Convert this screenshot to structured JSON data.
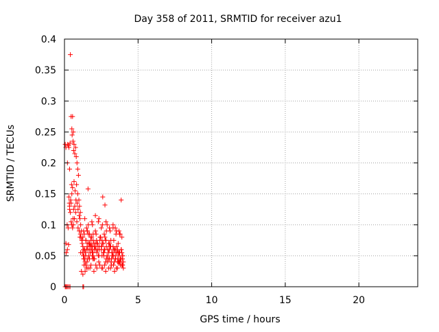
{
  "chart_data": {
    "type": "scatter",
    "title": "Day 358 of 2011, SRMTID for receiver azu1",
    "xlabel": "GPS time / hours",
    "ylabel": "SRMTID / TECUs",
    "xlim": [
      0,
      24
    ],
    "ylim": [
      0,
      0.4
    ],
    "x_ticks": [
      0,
      5,
      10,
      15,
      20
    ],
    "x_tick_labels": [
      "0",
      "5",
      "10",
      "15",
      "20"
    ],
    "y_ticks": [
      0,
      0.05,
      0.1,
      0.15,
      0.2,
      0.25,
      0.3,
      0.35,
      0.4
    ],
    "y_tick_labels": [
      "0",
      "0.05",
      "0.1",
      "0.15",
      "0.2",
      "0.25",
      "0.3",
      "0.35",
      "0.4"
    ],
    "grid": true,
    "marker": "+",
    "series": [
      {
        "name": "azu1",
        "color": "#ff0000",
        "x": [
          0.05,
          0.1,
          0.15,
          0.22,
          0.3,
          0.38,
          0.1,
          0.2,
          0.12,
          0.28,
          0.18,
          0.25,
          0.35,
          0.33,
          0.42,
          0.22,
          0.3,
          0.27,
          0.38,
          0.45,
          0.4,
          0.55,
          0.5,
          0.6,
          0.52,
          0.58,
          0.65,
          0.62,
          0.7,
          0.75,
          0.8,
          0.85,
          0.9,
          0.95,
          0.48,
          0.55,
          0.65,
          0.72,
          0.82,
          0.9,
          0.98,
          1.02,
          1.08,
          0.45,
          0.5,
          0.58,
          0.62,
          0.7,
          0.78,
          0.86,
          0.92,
          1.0,
          1.05,
          1.1,
          1.15,
          0.3,
          0.35,
          0.4,
          0.45,
          0.5,
          0.55,
          0.6,
          0.68,
          0.76,
          0.84,
          0.92,
          1.0,
          1.08,
          1.12,
          1.18,
          1.2,
          1.25,
          1.28,
          1.32,
          1.36,
          1.4,
          1.45,
          1.5,
          1.55,
          1.6,
          1.65,
          1.7,
          1.75,
          1.8,
          1.85,
          1.9,
          1.95,
          2.0,
          1.22,
          1.3,
          1.38,
          1.46,
          1.54,
          1.62,
          1.7,
          1.78,
          1.86,
          1.94,
          2.02,
          2.1,
          2.18,
          2.26,
          2.34,
          2.42,
          2.5,
          2.58,
          2.66,
          2.74,
          2.82,
          2.9,
          2.98,
          3.06,
          3.14,
          3.22,
          3.3,
          3.38,
          3.46,
          3.54,
          3.62,
          3.7,
          3.78,
          3.86,
          3.94,
          4.0,
          1.25,
          1.35,
          1.45,
          1.55,
          1.65,
          1.75,
          1.85,
          1.95,
          2.05,
          2.15,
          2.25,
          2.35,
          2.45,
          2.55,
          2.65,
          2.75,
          2.85,
          2.95,
          3.05,
          3.15,
          3.25,
          3.35,
          3.45,
          3.55,
          3.65,
          3.75,
          3.85,
          3.95,
          1.28,
          1.42,
          1.58,
          1.72,
          1.88,
          2.04,
          2.2,
          2.36,
          2.52,
          2.68,
          2.84,
          3.0,
          3.16,
          3.32,
          3.48,
          3.64,
          3.8,
          3.96,
          1.3,
          1.5,
          1.7,
          1.9,
          2.1,
          2.3,
          2.5,
          2.7,
          2.9,
          3.1,
          3.3,
          3.5,
          3.7,
          3.9,
          1.33,
          1.53,
          1.73,
          1.93,
          2.13,
          2.33,
          2.53,
          2.73,
          2.93,
          3.13,
          3.33,
          3.53,
          3.73,
          3.93,
          1.38,
          1.62,
          1.86,
          2.1,
          2.34,
          2.58,
          2.82,
          3.06,
          3.3,
          3.54,
          3.78,
          1.4,
          1.6,
          1.8,
          2.0,
          2.2,
          2.4,
          2.6,
          2.8,
          3.0,
          3.2,
          3.4,
          3.6,
          3.8,
          4.0,
          1.5,
          1.8,
          2.1,
          2.4,
          2.7,
          3.0,
          3.3,
          3.6,
          3.9,
          1.45,
          1.75,
          2.05,
          2.35,
          2.65,
          2.95,
          3.25,
          3.55,
          3.85,
          1.9,
          2.2,
          2.5,
          2.8,
          3.1,
          3.4,
          3.7,
          1.15,
          1.25,
          1.6,
          2.6,
          2.75,
          3.45,
          3.85,
          3.95,
          1.55,
          1.95,
          2.45,
          2.85,
          3.35,
          3.75,
          0.05,
          0.1,
          0.2,
          0.35,
          1.25,
          1.3,
          2.0,
          2.3,
          2.8,
          3.2,
          3.6,
          3.9,
          1.1,
          1.35,
          2.55,
          3.05,
          3.65,
          3.9,
          1.05,
          1.2,
          1.65,
          1.85,
          2.15,
          2.65,
          2.9,
          3.45,
          3.7
        ],
        "y": [
          0.0,
          0.0,
          0.0,
          0.0,
          0.0,
          0.0,
          0.07,
          0.06,
          0.055,
          0.068,
          0.1,
          0.095,
          0.125,
          0.135,
          0.14,
          0.23,
          0.225,
          0.228,
          0.232,
          0.275,
          0.375,
          0.275,
          0.255,
          0.25,
          0.245,
          0.235,
          0.23,
          0.22,
          0.215,
          0.225,
          0.21,
          0.2,
          0.19,
          0.18,
          0.165,
          0.16,
          0.17,
          0.155,
          0.165,
          0.15,
          0.14,
          0.13,
          0.12,
          0.135,
          0.15,
          0.11,
          0.125,
          0.13,
          0.14,
          0.135,
          0.125,
          0.115,
          0.11,
          0.1,
          0.09,
          0.145,
          0.13,
          0.12,
          0.105,
          0.1,
          0.095,
          0.1,
          0.11,
          0.12,
          0.105,
          0.095,
          0.09,
          0.085,
          0.08,
          0.075,
          0.07,
          0.065,
          0.06,
          0.05,
          0.045,
          0.04,
          0.035,
          0.03,
          0.07,
          0.06,
          0.05,
          0.045,
          0.065,
          0.075,
          0.06,
          0.055,
          0.05,
          0.07,
          0.055,
          0.045,
          0.06,
          0.075,
          0.065,
          0.085,
          0.07,
          0.08,
          0.06,
          0.055,
          0.065,
          0.07,
          0.075,
          0.06,
          0.05,
          0.08,
          0.065,
          0.07,
          0.055,
          0.06,
          0.075,
          0.05,
          0.045,
          0.06,
          0.065,
          0.055,
          0.05,
          0.04,
          0.06,
          0.055,
          0.045,
          0.05,
          0.04,
          0.06,
          0.045,
          0.04,
          0.08,
          0.085,
          0.075,
          0.09,
          0.07,
          0.065,
          0.08,
          0.075,
          0.06,
          0.085,
          0.07,
          0.065,
          0.08,
          0.075,
          0.07,
          0.08,
          0.065,
          0.06,
          0.07,
          0.075,
          0.055,
          0.06,
          0.05,
          0.065,
          0.07,
          0.055,
          0.06,
          0.05,
          0.05,
          0.055,
          0.045,
          0.06,
          0.05,
          0.045,
          0.055,
          0.06,
          0.065,
          0.05,
          0.045,
          0.055,
          0.04,
          0.05,
          0.045,
          0.055,
          0.045,
          0.05,
          0.09,
          0.095,
          0.085,
          0.1,
          0.09,
          0.105,
          0.095,
          0.085,
          0.1,
          0.09,
          0.095,
          0.085,
          0.09,
          0.08,
          0.035,
          0.04,
          0.03,
          0.045,
          0.035,
          0.04,
          0.03,
          0.035,
          0.04,
          0.03,
          0.035,
          0.03,
          0.04,
          0.035,
          0.11,
          0.1,
          0.105,
          0.115,
          0.11,
          0.1,
          0.105,
          0.095,
          0.1,
          0.09,
          0.085,
          0.025,
          0.03,
          0.035,
          0.025,
          0.03,
          0.035,
          0.03,
          0.025,
          0.03,
          0.035,
          0.025,
          0.03,
          0.035,
          0.03,
          0.06,
          0.07,
          0.065,
          0.075,
          0.06,
          0.07,
          0.065,
          0.06,
          0.055,
          0.05,
          0.055,
          0.06,
          0.065,
          0.055,
          0.06,
          0.05,
          0.055,
          0.045,
          0.065,
          0.07,
          0.06,
          0.075,
          0.065,
          0.06,
          0.055,
          0.025,
          0.02,
          0.158,
          0.145,
          0.132,
          0.095,
          0.14,
          0.035,
          0.09,
          0.085,
          0.08,
          0.09,
          0.075,
          0.085,
          0.23,
          0.225,
          0.2,
          0.19,
          0.0,
          0.0,
          0.045,
          0.05,
          0.04,
          0.045,
          0.04,
          0.035,
          0.055,
          0.06,
          0.05,
          0.045,
          0.04,
          0.035,
          0.08,
          0.075,
          0.07,
          0.065,
          0.06,
          0.055,
          0.05,
          0.045,
          0.04
        ]
      }
    ]
  }
}
